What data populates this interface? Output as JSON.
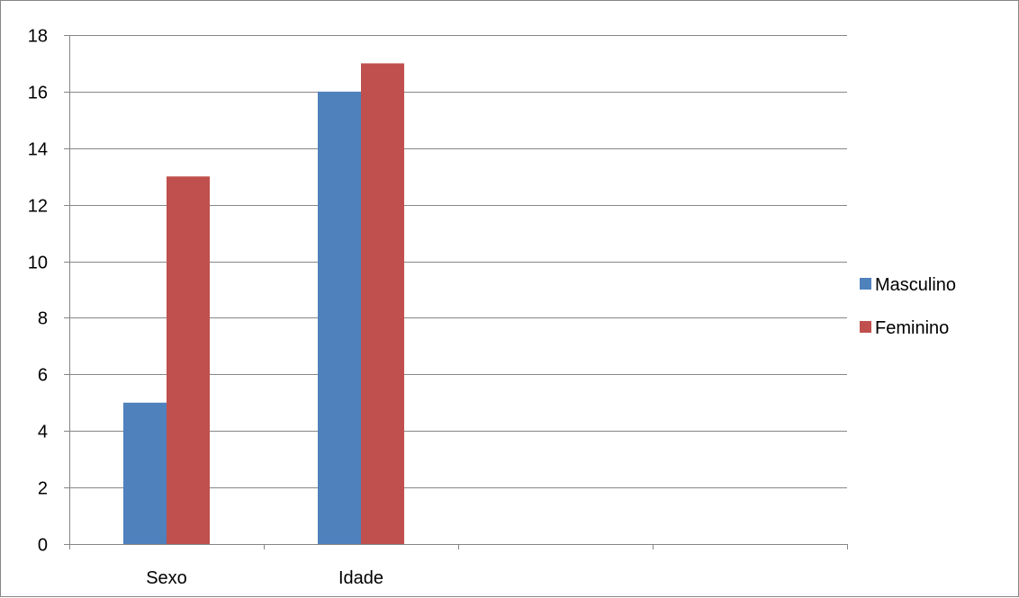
{
  "chart_data": {
    "type": "bar",
    "categories": [
      "Sexo",
      "Idade",
      "",
      ""
    ],
    "series": [
      {
        "name": "Masculino",
        "values": [
          5,
          16,
          null,
          null
        ],
        "color": "#4f81bd"
      },
      {
        "name": "Feminino",
        "values": [
          13,
          17,
          null,
          null
        ],
        "color": "#c0504d"
      }
    ],
    "title": "",
    "xlabel": "",
    "ylabel": "",
    "ylim": [
      0,
      18
    ],
    "yticks": [
      0,
      2,
      4,
      6,
      8,
      10,
      12,
      14,
      16,
      18
    ],
    "grid": true,
    "legend_position": "right"
  }
}
